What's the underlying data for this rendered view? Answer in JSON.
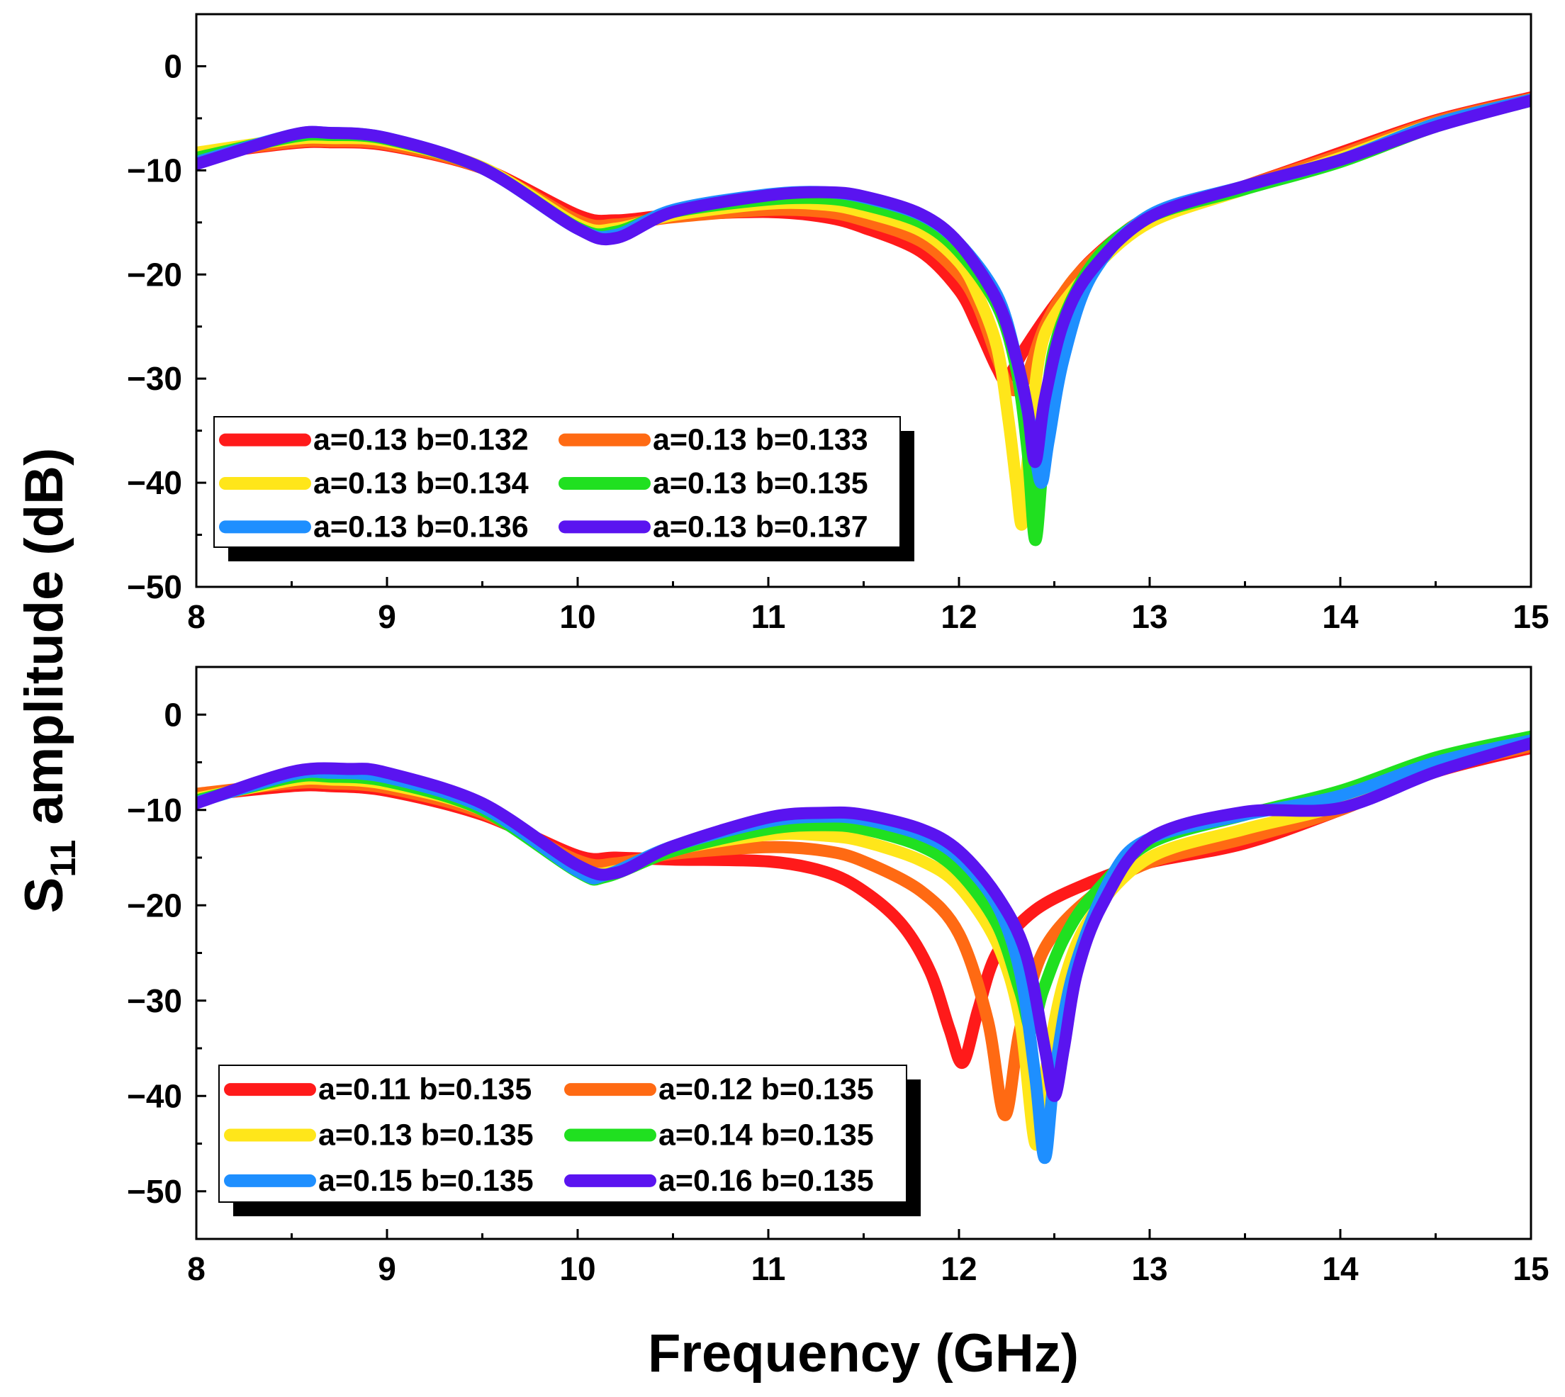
{
  "chart_data": [
    {
      "type": "line",
      "panel": "top",
      "xlim": [
        8,
        15
      ],
      "ylim": [
        -50,
        5
      ],
      "xticks": [
        8,
        9,
        10,
        11,
        12,
        13,
        14,
        15
      ],
      "xtick_labels": [
        "8",
        "9",
        "10",
        "11",
        "12",
        "13",
        "14",
        "15"
      ],
      "yticks": [
        0,
        -10,
        -20,
        -30,
        -40,
        -50
      ],
      "ytick_labels": [
        "0",
        "−10",
        "−20",
        "−30",
        "−40",
        "−50"
      ],
      "legend_position": "lower-left",
      "series": [
        {
          "name": "a=0.13 b=0.132",
          "color": "#FF1A1A",
          "x": [
            8,
            8.5,
            8.7,
            9,
            9.5,
            10,
            10.2,
            10.5,
            11,
            11.3,
            11.5,
            11.8,
            12,
            12.1,
            12.2,
            12.25,
            12.35,
            12.5,
            12.7,
            13,
            13.5,
            14,
            14.5,
            15
          ],
          "y": [
            -8.5,
            -7.4,
            -7.3,
            -7.6,
            -9.8,
            -14.3,
            -14.8,
            -14.3,
            -14.0,
            -14.5,
            -15.5,
            -17.8,
            -21.5,
            -25,
            -29,
            -30,
            -27,
            -23,
            -18.5,
            -14.5,
            -11.5,
            -8.3,
            -5.2,
            -3.0
          ]
        },
        {
          "name": "a=0.13 b=0.133",
          "color": "#FF6A13",
          "x": [
            8,
            8.5,
            8.7,
            9,
            9.5,
            10,
            10.2,
            10.5,
            11,
            11.3,
            11.5,
            11.8,
            12,
            12.1,
            12.2,
            12.27,
            12.35,
            12.45,
            12.6,
            12.8,
            13,
            13.5,
            14,
            14.5,
            15
          ],
          "y": [
            -8.5,
            -7.3,
            -7.2,
            -7.5,
            -9.8,
            -14.8,
            -15.2,
            -14.5,
            -13.8,
            -14.0,
            -14.8,
            -16.8,
            -20,
            -23,
            -28,
            -31,
            -30,
            -25,
            -20.5,
            -17,
            -14.5,
            -11.5,
            -8.5,
            -5.3,
            -3.1
          ]
        },
        {
          "name": "a=0.13 b=0.134",
          "color": "#FFE61A",
          "x": [
            8,
            8.5,
            8.7,
            9,
            9.5,
            10,
            10.2,
            10.5,
            11,
            11.3,
            11.5,
            11.8,
            12,
            12.1,
            12.2,
            12.26,
            12.3,
            12.33,
            12.36,
            12.42,
            12.5,
            12.7,
            13,
            13.5,
            14,
            14.5,
            15
          ],
          "y": [
            -8.3,
            -7.0,
            -6.9,
            -7.2,
            -9.7,
            -15.2,
            -15.6,
            -14.3,
            -13.2,
            -13.3,
            -14.0,
            -15.8,
            -18.8,
            -22,
            -27,
            -34,
            -40,
            -44,
            -38,
            -28,
            -24,
            -19.5,
            -15,
            -11.8,
            -8.8,
            -5.5,
            -3.2
          ]
        },
        {
          "name": "a=0.13 b=0.135",
          "color": "#20E020",
          "x": [
            8,
            8.5,
            8.7,
            9,
            9.5,
            10,
            10.2,
            10.5,
            11,
            11.3,
            11.5,
            11.8,
            12,
            12.2,
            12.3,
            12.36,
            12.4,
            12.44,
            12.5,
            12.7,
            13,
            13.5,
            14,
            14.5,
            15
          ],
          "y": [
            -8.8,
            -6.8,
            -6.6,
            -7.0,
            -9.8,
            -15.5,
            -15.9,
            -14.0,
            -12.8,
            -12.7,
            -13.3,
            -15.0,
            -17.8,
            -23,
            -29,
            -37,
            -45.5,
            -38,
            -27,
            -19,
            -14.5,
            -11.8,
            -9.2,
            -5.8,
            -3.3
          ]
        },
        {
          "name": "a=0.13 b=0.136",
          "color": "#1E8FFF",
          "x": [
            8,
            8.5,
            8.7,
            9,
            9.5,
            10,
            10.2,
            10.5,
            11,
            11.3,
            11.5,
            11.8,
            12,
            12.2,
            12.3,
            12.38,
            12.43,
            12.47,
            12.55,
            12.7,
            13,
            13.5,
            14,
            14.5,
            15
          ],
          "y": [
            -9.2,
            -6.6,
            -6.4,
            -6.9,
            -9.8,
            -15.6,
            -16.2,
            -13.8,
            -12.3,
            -12.1,
            -12.6,
            -14.3,
            -17.0,
            -22,
            -28,
            -35,
            -40,
            -36,
            -28,
            -20,
            -14.3,
            -11.5,
            -9.0,
            -5.5,
            -3.2
          ]
        },
        {
          "name": "a=0.13 b=0.137",
          "color": "#5A14F0",
          "x": [
            8,
            8.5,
            8.7,
            9,
            9.5,
            10,
            10.2,
            10.5,
            11,
            11.3,
            11.5,
            11.8,
            12,
            12.2,
            12.3,
            12.36,
            12.4,
            12.45,
            12.55,
            12.7,
            13,
            13.5,
            14,
            14.5,
            15
          ],
          "y": [
            -9.4,
            -6.6,
            -6.4,
            -6.9,
            -9.8,
            -15.6,
            -16.5,
            -14.0,
            -12.4,
            -12.1,
            -12.5,
            -14.2,
            -17.0,
            -22.5,
            -28,
            -33,
            -38,
            -32,
            -24.5,
            -19.5,
            -14.5,
            -11.5,
            -9.0,
            -5.8,
            -3.3
          ]
        }
      ]
    },
    {
      "type": "line",
      "panel": "bottom",
      "xlim": [
        8,
        15
      ],
      "ylim": [
        -55,
        5
      ],
      "xticks": [
        8,
        9,
        10,
        11,
        12,
        13,
        14,
        15
      ],
      "xtick_labels": [
        "8",
        "9",
        "10",
        "11",
        "12",
        "13",
        "14",
        "15"
      ],
      "yticks": [
        0,
        -10,
        -20,
        -30,
        -40,
        -50
      ],
      "ytick_labels": [
        "0",
        "−10",
        "−20",
        "−30",
        "−40",
        "−50"
      ],
      "xlabel": "Frequency (GHz)",
      "legend_position": "lower-left",
      "series": [
        {
          "name": "a=0.11 b=0.135",
          "color": "#FF1A1A",
          "x": [
            8,
            8.5,
            8.7,
            9,
            9.5,
            10,
            10.2,
            10.5,
            11,
            11.3,
            11.5,
            11.7,
            11.85,
            11.95,
            12.02,
            12.1,
            12.2,
            12.4,
            12.7,
            13,
            13.5,
            14,
            14.5,
            15
          ],
          "y": [
            -8.5,
            -7.5,
            -7.5,
            -8.0,
            -10.5,
            -14.8,
            -15.0,
            -15.2,
            -15.4,
            -16.5,
            -18.5,
            -22,
            -27,
            -33,
            -36.5,
            -31,
            -25,
            -20.5,
            -17.5,
            -15.5,
            -13.5,
            -10,
            -6,
            -3.5
          ]
        },
        {
          "name": "a=0.12 b=0.135",
          "color": "#FF6A13",
          "x": [
            8,
            8.5,
            8.7,
            9,
            9.5,
            10,
            10.2,
            10.5,
            11,
            11.3,
            11.5,
            11.8,
            12,
            12.15,
            12.24,
            12.32,
            12.45,
            12.7,
            13,
            13.5,
            14,
            14.5,
            15
          ],
          "y": [
            -8.3,
            -7.2,
            -7.2,
            -7.7,
            -10.3,
            -15.3,
            -15.6,
            -14.6,
            -13.9,
            -14.3,
            -15.4,
            -18.5,
            -23,
            -32,
            -42,
            -33,
            -24.5,
            -19,
            -15.5,
            -13,
            -10,
            -5.8,
            -3.3
          ]
        },
        {
          "name": "a=0.13 b=0.135",
          "color": "#FFE61A",
          "x": [
            8,
            8.5,
            8.7,
            9,
            9.5,
            10,
            10.2,
            10.5,
            11,
            11.3,
            11.5,
            11.8,
            12,
            12.2,
            12.32,
            12.4,
            12.45,
            12.55,
            12.7,
            13,
            13.5,
            14,
            14.5,
            15
          ],
          "y": [
            -8.8,
            -6.9,
            -6.8,
            -7.3,
            -10.0,
            -16.0,
            -16.4,
            -14.2,
            -12.6,
            -12.7,
            -13.3,
            -15.3,
            -18,
            -24,
            -32,
            -45,
            -38,
            -28,
            -21,
            -15,
            -12,
            -9.5,
            -5.3,
            -3.0
          ]
        },
        {
          "name": "a=0.14 b=0.135",
          "color": "#20E020",
          "x": [
            8,
            8.5,
            8.7,
            9,
            9.5,
            10,
            10.15,
            10.5,
            11,
            11.3,
            11.5,
            11.8,
            12,
            12.2,
            12.32,
            12.38,
            12.44,
            12.55,
            12.7,
            13,
            13.5,
            14,
            14.5,
            15
          ],
          "y": [
            -9.0,
            -6.6,
            -6.5,
            -7.0,
            -10.0,
            -16.5,
            -17.0,
            -14.3,
            -12.0,
            -11.6,
            -12.0,
            -13.8,
            -16.5,
            -22,
            -29,
            -33,
            -29,
            -23.5,
            -19,
            -13.5,
            -10.5,
            -8,
            -4.5,
            -2.3
          ]
        },
        {
          "name": "a=0.15 b=0.135",
          "color": "#1E8FFF",
          "x": [
            8,
            8.5,
            8.7,
            9,
            9.5,
            10,
            10.15,
            10.5,
            11,
            11.3,
            11.5,
            11.8,
            12,
            12.2,
            12.32,
            12.4,
            12.45,
            12.5,
            12.6,
            12.8,
            13,
            13.5,
            14,
            14.5,
            15
          ],
          "y": [
            -9.2,
            -6.3,
            -6.1,
            -6.6,
            -9.7,
            -16.4,
            -16.8,
            -13.8,
            -11.2,
            -10.7,
            -11.0,
            -12.6,
            -15,
            -20,
            -27,
            -38,
            -46.5,
            -38,
            -27,
            -17,
            -13,
            -10.5,
            -8.5,
            -5,
            -2.7
          ]
        },
        {
          "name": "a=0.16 b=0.135",
          "color": "#5A14F0",
          "x": [
            8,
            8.5,
            8.8,
            9,
            9.5,
            10,
            10.2,
            10.5,
            11,
            11.3,
            11.5,
            11.8,
            12,
            12.2,
            12.35,
            12.45,
            12.5,
            12.55,
            12.62,
            12.75,
            13,
            13.5,
            14,
            14.5,
            15
          ],
          "y": [
            -9.3,
            -6.0,
            -5.7,
            -6.1,
            -9.3,
            -15.8,
            -16.6,
            -13.8,
            -10.8,
            -10.3,
            -10.5,
            -12,
            -14.3,
            -19,
            -25,
            -35,
            -40,
            -35,
            -27,
            -20,
            -13,
            -10.2,
            -9.8,
            -6.0,
            -3.0
          ]
        }
      ]
    }
  ],
  "ylabel_main": "S",
  "ylabel_subscript": "11",
  "ylabel_rest": " amplitude (dB)"
}
